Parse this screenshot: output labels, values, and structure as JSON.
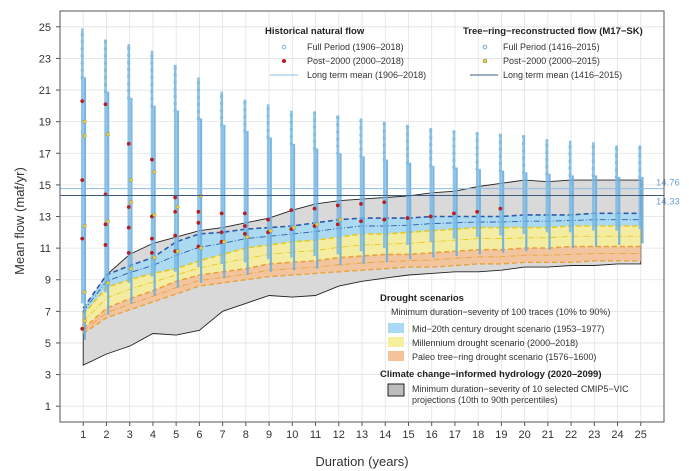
{
  "chart_data": {
    "type": "scatter",
    "xlabel": "Duration (years)",
    "ylabel": "Mean flow (maf/yr)",
    "xlim": [
      0,
      26
    ],
    "ylim": [
      0,
      26
    ],
    "x_ticks": [
      1,
      2,
      3,
      4,
      5,
      6,
      7,
      8,
      9,
      10,
      11,
      12,
      13,
      14,
      15,
      16,
      17,
      18,
      19,
      20,
      21,
      22,
      23,
      24,
      25
    ],
    "y_ticks": [
      1,
      3,
      5,
      7,
      9,
      11,
      13,
      15,
      17,
      19,
      21,
      23,
      25
    ],
    "grid": true,
    "long_term_means": [
      {
        "name": "Long term mean (1906–2018)",
        "value": 14.76,
        "label": "14.76"
      },
      {
        "name": "Long term mean (1416–2015)",
        "value": 14.33,
        "label": "14.33"
      }
    ],
    "ranges": {
      "historical_full_period": {
        "x": [
          1,
          2,
          3,
          4,
          5,
          6,
          7,
          8,
          9,
          10,
          11,
          12,
          13,
          14,
          15,
          16,
          17,
          18,
          19,
          20,
          21,
          22,
          23,
          24,
          25
        ],
        "min": [
          7.5,
          8.2,
          8.8,
          9.2,
          9.5,
          9.8,
          10.0,
          10.1,
          10.3,
          10.4,
          10.5,
          10.6,
          10.8,
          11.0,
          11.2,
          11.4,
          11.6,
          11.7,
          11.8,
          11.9,
          12.0,
          12.0,
          12.1,
          12.1,
          12.2
        ],
        "max": [
          24.9,
          24.2,
          23.9,
          23.5,
          22.6,
          21.8,
          20.9,
          20.4,
          20.1,
          19.7,
          19.6,
          19.4,
          19.2,
          19.0,
          18.8,
          18.6,
          18.4,
          18.3,
          18.2,
          18.1,
          17.9,
          17.8,
          17.7,
          17.5,
          17.5
        ]
      },
      "tree_ring_full_period": {
        "x": [
          1,
          2,
          3,
          4,
          5,
          6,
          7,
          8,
          9,
          10,
          11,
          12,
          13,
          14,
          15,
          16,
          17,
          18,
          19,
          20,
          21,
          22,
          23,
          24,
          25
        ],
        "min": [
          5.2,
          6.8,
          7.5,
          8.0,
          8.5,
          8.8,
          9.1,
          9.3,
          9.5,
          9.6,
          9.7,
          9.9,
          10.0,
          10.1,
          10.3,
          10.4,
          10.5,
          10.6,
          10.7,
          10.8,
          10.9,
          11.0,
          11.1,
          11.2,
          11.3
        ],
        "max": [
          21.8,
          20.9,
          20.5,
          20.0,
          19.7,
          19.2,
          18.8,
          18.4,
          18.0,
          17.6,
          17.3,
          17.0,
          16.8,
          16.6,
          16.4,
          16.2,
          16.1,
          16.0,
          15.9,
          15.8,
          15.7,
          15.6,
          15.6,
          15.5,
          15.5
        ]
      }
    },
    "post2000_historical": {
      "x": [
        1,
        1,
        1,
        1,
        2,
        2,
        2,
        2,
        3,
        3,
        3,
        3,
        4,
        4,
        4,
        4,
        5,
        5,
        5,
        5,
        6,
        6,
        6,
        7,
        7,
        7,
        8,
        8,
        8,
        9,
        9,
        10,
        10,
        11,
        11,
        12,
        12,
        13,
        13,
        14,
        14,
        15,
        16,
        17,
        18,
        19
      ],
      "y": [
        5.9,
        11.6,
        15.3,
        20.3,
        11.2,
        12.5,
        14.4,
        20.1,
        10.7,
        12.3,
        13.6,
        17.6,
        10.7,
        11.6,
        13.0,
        16.6,
        10.8,
        11.8,
        13.3,
        14.2,
        11.1,
        12.6,
        13.3,
        11.4,
        12.0,
        13.2,
        11.9,
        12.4,
        13.2,
        12.0,
        12.8,
        12.2,
        13.4,
        12.4,
        13.5,
        12.5,
        13.7,
        12.7,
        13.8,
        12.8,
        13.9,
        12.9,
        13.0,
        13.2,
        13.3,
        13.5
      ]
    },
    "post2000_tree_ring": {
      "x": [
        1,
        1,
        1,
        1,
        1,
        2,
        2,
        2,
        3,
        3,
        3,
        4,
        4,
        4,
        5,
        5,
        6,
        6,
        7,
        8,
        9,
        10,
        11,
        12
      ],
      "y": [
        6.4,
        8.2,
        12.4,
        18.1,
        19.0,
        8.8,
        12.7,
        18.2,
        9.7,
        13.9,
        15.3,
        10.4,
        13.1,
        15.8,
        10.8,
        13.6,
        11.0,
        14.3,
        11.4,
        11.7,
        12.1,
        12.3,
        12.5,
        12.8
      ]
    },
    "drought_scenarios": [
      {
        "name": "Mid–20th century drought scenario (1953–1977)",
        "color": "#a8dbf3",
        "x": [
          1,
          2,
          3,
          4,
          5,
          6,
          7,
          8,
          9,
          10,
          11,
          12,
          13,
          14,
          15,
          16,
          17,
          18,
          19,
          20,
          21,
          22,
          23,
          24,
          25
        ],
        "low": [
          6.8,
          8.5,
          9.0,
          9.4,
          9.7,
          10.2,
          10.6,
          11.0,
          11.2,
          11.4,
          11.5,
          11.7,
          11.9,
          11.9,
          12.0,
          12.1,
          12.2,
          12.3,
          12.3,
          12.3,
          12.3,
          12.4,
          12.4,
          12.4,
          12.4
        ],
        "high": [
          7.2,
          9.3,
          9.9,
          10.4,
          11.4,
          11.9,
          12.0,
          12.2,
          12.3,
          12.4,
          12.6,
          12.8,
          12.9,
          12.9,
          12.9,
          13.0,
          13.0,
          13.0,
          13.0,
          13.1,
          13.1,
          13.1,
          13.2,
          13.2,
          13.2
        ]
      },
      {
        "name": "Millennium drought scenario (2000–2018)",
        "color": "#f6ef9c",
        "x": [
          1,
          2,
          3,
          4,
          5,
          6,
          7,
          8,
          9,
          10,
          11,
          12,
          13,
          14,
          15,
          16,
          17,
          18,
          19,
          20,
          21,
          22,
          23,
          24,
          25
        ],
        "low": [
          5.9,
          7.2,
          7.8,
          8.3,
          8.9,
          9.3,
          9.5,
          9.7,
          10.0,
          10.1,
          10.2,
          10.4,
          10.5,
          10.6,
          10.6,
          10.7,
          10.8,
          10.9,
          10.9,
          11.0,
          11.0,
          11.1,
          11.1,
          11.1,
          11.1
        ],
        "high": [
          6.8,
          8.5,
          9.0,
          9.4,
          9.7,
          10.2,
          10.6,
          11.0,
          11.2,
          11.4,
          11.5,
          11.7,
          11.9,
          11.9,
          12.0,
          12.1,
          12.2,
          12.3,
          12.3,
          12.3,
          12.3,
          12.4,
          12.4,
          12.4,
          12.4
        ]
      },
      {
        "name": "Paleo tree−ring drought scenario (1576–1600)",
        "color": "#f5c39a",
        "x": [
          1,
          2,
          3,
          4,
          5,
          6,
          7,
          8,
          9,
          10,
          11,
          12,
          13,
          14,
          15,
          16,
          17,
          18,
          19,
          20,
          21,
          22,
          23,
          24,
          25
        ],
        "low": [
          5.6,
          6.6,
          7.1,
          7.6,
          8.1,
          8.6,
          8.8,
          9.0,
          9.2,
          9.3,
          9.4,
          9.5,
          9.6,
          9.7,
          9.8,
          9.8,
          9.9,
          10.0,
          10.0,
          10.1,
          10.1,
          10.1,
          10.2,
          10.2,
          10.2
        ],
        "high": [
          5.9,
          7.2,
          7.8,
          8.3,
          8.9,
          9.3,
          9.5,
          9.7,
          10.0,
          10.1,
          10.2,
          10.4,
          10.5,
          10.6,
          10.6,
          10.7,
          10.8,
          10.9,
          10.9,
          11.0,
          11.0,
          11.1,
          11.1,
          11.1,
          11.1
        ]
      }
    ],
    "climate_change": {
      "name": "Minimum duration–severity of 10 selected CMIP5–VIC projections (10th to 90th percentiles)",
      "color": "#d9d9d9",
      "x": [
        1,
        2,
        3,
        4,
        5,
        6,
        7,
        8,
        9,
        10,
        11,
        12,
        13,
        14,
        15,
        16,
        17,
        18,
        19,
        20,
        21,
        22,
        23,
        24,
        25
      ],
      "low": [
        3.6,
        4.3,
        4.8,
        5.6,
        5.5,
        5.8,
        7.0,
        7.5,
        8.0,
        7.9,
        8.0,
        8.6,
        8.9,
        9.1,
        9.3,
        9.4,
        9.5,
        9.5,
        9.6,
        9.8,
        9.8,
        9.9,
        9.9,
        10.0,
        10.0
      ],
      "high": [
        7.0,
        9.3,
        10.6,
        11.3,
        11.7,
        12.1,
        12.3,
        12.6,
        12.9,
        13.4,
        13.8,
        14.0,
        14.1,
        14.2,
        14.3,
        14.5,
        14.6,
        14.9,
        15.1,
        15.3,
        15.2,
        15.3,
        15.3,
        15.3,
        15.3
      ]
    }
  },
  "legend": {
    "historical_title": "Historical natural flow",
    "historical_full": "Full Period (1906–2018)",
    "historical_post2000": "Post−2000 (2000–2018)",
    "historical_mean": "Long term mean (1906–2018)",
    "tree_title": "Tree−ring−reconstructed flow (M17−SK)",
    "tree_full": "Full Period (1416–2015)",
    "tree_post2000": "Post−2000 (2000–2015)",
    "tree_mean": "Long term mean (1416–2015)",
    "drought_title": "Drought scenarios",
    "drought_subtitle": "Minimum duration−severity of 100 traces (10% to 90%)",
    "mid20": "Mid−20th century drought scenario (1953–1977)",
    "millennium": "Millennium drought scenario (2000–2018)",
    "paleo": "Paleo tree−ring drought scenario (1576–1600)",
    "cc_title": "Climate change−informed hydrology (2020–2099)",
    "cc_line1": "Minimum duration−severity of 10 selected CMIP5−VIC",
    "cc_line2": "projections (10th to 90th percentiles)"
  },
  "colors": {
    "historical_marker": "#79b7e3",
    "tree_marker": "#6aaee0",
    "post2000_hist": "#b51f24",
    "post2000_tree": "#e8d23a",
    "mean_hist": "#8cbde3",
    "mean_tree": "#3d5a80",
    "band_mid20": "#a8dbf3",
    "band_mill": "#f6ef9c",
    "band_paleo": "#f5c39a",
    "band_cc": "#d9d9d9"
  }
}
